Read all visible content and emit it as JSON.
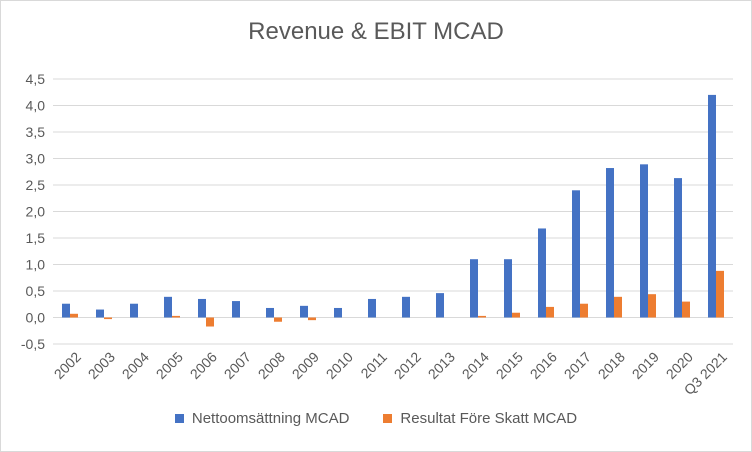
{
  "chart_data": {
    "type": "bar",
    "title": "Revenue & EBIT MCAD",
    "xlabel": "",
    "ylabel": "",
    "ylim": [
      -0.5,
      4.5
    ],
    "yticks": [
      -0.5,
      0.0,
      0.5,
      1.0,
      1.5,
      2.0,
      2.5,
      3.0,
      3.5,
      4.0,
      4.5
    ],
    "ytick_labels": [
      "-0,5",
      "0,0",
      "0,5",
      "1,0",
      "1,5",
      "2,0",
      "2,5",
      "3,0",
      "3,5",
      "4,0",
      "4,5"
    ],
    "grid": true,
    "legend_position": "bottom",
    "categories": [
      "2002",
      "2003",
      "2004",
      "2005",
      "2006",
      "2007",
      "2008",
      "2009",
      "2010",
      "2011",
      "2012",
      "2013",
      "2014",
      "2015",
      "2016",
      "2017",
      "2018",
      "2019",
      "2020",
      "Q3 2021"
    ],
    "series": [
      {
        "name": "Nettoomsättning MCAD",
        "color": "#4472c4",
        "values": [
          0.26,
          0.15,
          0.26,
          0.39,
          0.35,
          0.31,
          0.18,
          0.22,
          0.18,
          0.35,
          0.39,
          0.46,
          1.1,
          1.1,
          1.68,
          2.4,
          2.82,
          2.89,
          2.63,
          4.2
        ]
      },
      {
        "name": "Resultat Före Skatt MCAD",
        "color": "#ed7d31",
        "values": [
          0.07,
          -0.03,
          0.0,
          0.03,
          -0.17,
          0.0,
          -0.08,
          -0.05,
          0.0,
          0.0,
          0.0,
          0.0,
          0.03,
          0.09,
          0.2,
          0.26,
          0.39,
          0.44,
          0.3,
          0.88
        ]
      }
    ]
  }
}
